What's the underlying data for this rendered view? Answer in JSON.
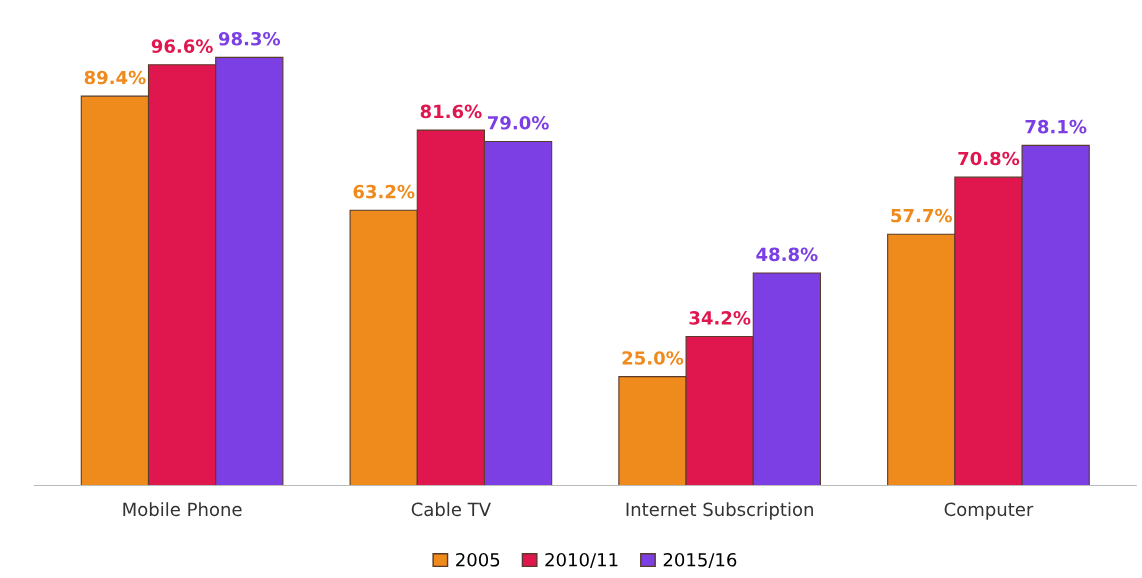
{
  "chart_data": {
    "type": "bar",
    "categories": [
      "Mobile Phone",
      "Cable TV",
      "Internet Subscription",
      "Computer"
    ],
    "series": [
      {
        "name": "2005",
        "color": "#ef8a1c",
        "values": [
          89.4,
          63.2,
          25.0,
          57.7
        ],
        "value_labels": [
          "89.4%",
          "63.2%",
          "25.0%",
          "57.7%"
        ]
      },
      {
        "name": "2010/11",
        "color": "#e0174f",
        "values": [
          96.6,
          81.6,
          34.2,
          70.8
        ],
        "value_labels": [
          "96.6%",
          "81.6%",
          "34.2%",
          "70.8%"
        ]
      },
      {
        "name": "2015/16",
        "color": "#7b3fe4",
        "values": [
          98.3,
          79.0,
          48.8,
          78.1
        ],
        "value_labels": [
          "98.3%",
          "79.0%",
          "48.8%",
          "78.1%"
        ]
      }
    ],
    "legend": "bottom"
  }
}
